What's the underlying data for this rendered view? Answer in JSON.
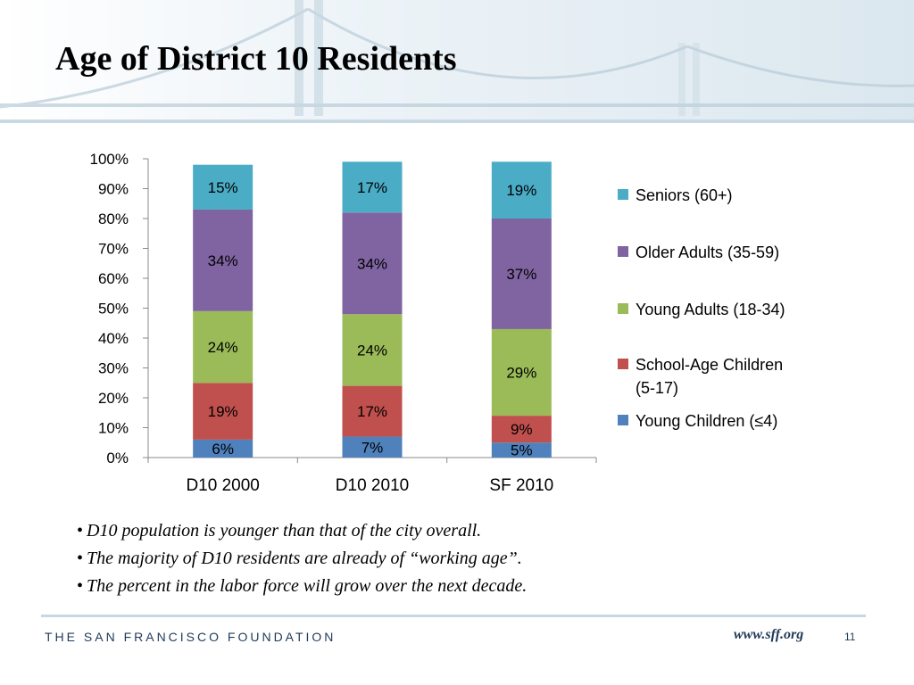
{
  "slide": {
    "title": "Age of District 10 Residents",
    "bullets": [
      "D10 population is younger than that of the city overall.",
      "The majority of D10 residents are already of “working age”.",
      "The percent in the labor force will grow over the next decade."
    ],
    "footer": {
      "organization": "THE SAN FRANCISCO FOUNDATION",
      "website": "www.sff.org",
      "page_number": "11"
    }
  },
  "chart_data": {
    "type": "bar",
    "stacked": true,
    "categories": [
      "D10 2000",
      "D10 2010",
      "SF 2010"
    ],
    "ylim": [
      0,
      100
    ],
    "yticks": [
      "0%",
      "10%",
      "20%",
      "30%",
      "40%",
      "50%",
      "60%",
      "70%",
      "80%",
      "90%",
      "100%"
    ],
    "grid": false,
    "legend_position": "right",
    "series": [
      {
        "name": "Young Children (≤4)",
        "color": "#4f81bd",
        "values": [
          6,
          7,
          5
        ],
        "labels": [
          "6%",
          "7%",
          "5%"
        ]
      },
      {
        "name": "School-Age Children (5-17)",
        "color": "#c0504d",
        "values": [
          19,
          17,
          9
        ],
        "labels": [
          "19%",
          "17%",
          "9%"
        ]
      },
      {
        "name": "Young Adults (18-34)",
        "color": "#9bbb59",
        "values": [
          24,
          24,
          29
        ],
        "labels": [
          "24%",
          "24%",
          "29%"
        ]
      },
      {
        "name": "Older Adults (35-59)",
        "color": "#8064a2",
        "values": [
          34,
          34,
          37
        ],
        "labels": [
          "34%",
          "34%",
          "37%"
        ]
      },
      {
        "name": "Seniors (60+)",
        "color": "#4bacc6",
        "values": [
          15,
          17,
          19
        ],
        "labels": [
          "15%",
          "17%",
          "19%"
        ]
      }
    ],
    "legend_order": [
      "Seniors (60+)",
      "Older Adults (35-59)",
      "Young Adults (18-34)",
      "School-Age Children (5-17)",
      "Young Children (≤4)"
    ]
  }
}
